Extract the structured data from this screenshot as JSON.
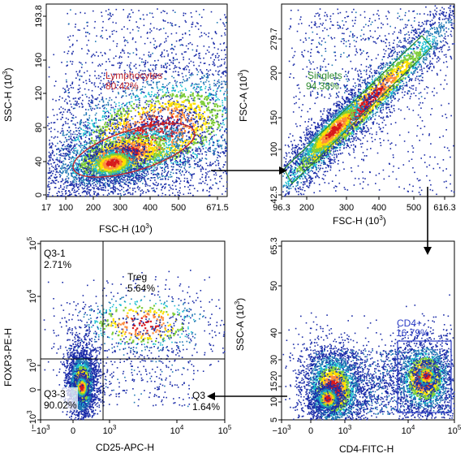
{
  "chart_data": [
    {
      "type": "scatter",
      "panel": "top-left",
      "xlabel": "FSC-H",
      "xlabel_unit": "(10",
      "xlabel_exp": "3",
      "ylabel": "SSC-H",
      "ylabel_unit": "(10",
      "ylabel_exp": "3",
      "x_ticks": [
        "17",
        "100",
        "200",
        "300",
        "400",
        "500",
        "671.5"
      ],
      "y_ticks": [
        "0",
        "40",
        "80",
        "120",
        "160",
        "193.8"
      ],
      "xlim": [
        17,
        671.5
      ],
      "ylim": [
        0,
        193.8
      ],
      "gate": {
        "name": "Lymphocytes",
        "percent": "80.42%",
        "shape": "ellipse",
        "color": "#c0282d",
        "center": [
          360,
          38
        ],
        "semi_axes": [
          170,
          20
        ],
        "angle_deg": 17
      },
      "density_populations": [
        {
          "label": "main cluster",
          "center": [
            265,
            33
          ],
          "spread": [
            95,
            16
          ]
        }
      ]
    },
    {
      "type": "scatter",
      "panel": "top-right",
      "xlabel": "FSC-H",
      "xlabel_unit": "(10",
      "xlabel_exp": "3",
      "ylabel": "FSC-A",
      "ylabel_unit": "(10",
      "ylabel_exp": "3",
      "x_ticks": [
        "96.3",
        "200",
        "300",
        "400",
        "500",
        "616.3"
      ],
      "y_ticks": [
        "42.5",
        "100",
        "150",
        "200",
        "279.7"
      ],
      "xlim": [
        96.3,
        616.3
      ],
      "ylim": [
        42.5,
        279.7
      ],
      "gate": {
        "name": "Singlets",
        "percent": "94.38%",
        "shape": "diagonal-polygon",
        "color": "#2e8b2e",
        "from": [
          110,
          60
        ],
        "to": [
          540,
          262
        ]
      },
      "density_populations": [
        {
          "label": "singlet diagonal",
          "center": [
            250,
            125
          ],
          "spread": [
            60,
            30
          ]
        }
      ]
    },
    {
      "type": "scatter",
      "panel": "bottom-right",
      "xlabel": "CD4-FITC-H",
      "ylabel": "SSC-A",
      "ylabel_unit": "(10",
      "ylabel_exp": "3",
      "x_ticks": [
        {
          "base": "−10",
          "exp": "3"
        },
        {
          "base": "0",
          "exp": ""
        },
        {
          "base": "10",
          "exp": "3"
        },
        {
          "base": "10",
          "exp": "4"
        },
        {
          "base": "10",
          "exp": "5"
        }
      ],
      "y_ticks": [
        "5",
        "10",
        "15",
        "20",
        "30",
        "40",
        "50",
        "65.3"
      ],
      "ylim": [
        5,
        65.3
      ],
      "gate": {
        "name": "CD4+",
        "percent": "16.79%",
        "shape": "rectangle",
        "color": "#2b3cc4"
      },
      "density_populations": [
        {
          "label": "CD4 negative",
          "x": "≈500",
          "y": 11
        },
        {
          "label": "CD4 positive",
          "x": "≈2×10^4",
          "y": 15
        }
      ]
    },
    {
      "type": "scatter",
      "panel": "bottom-left",
      "xlabel": "CD25-APC-H",
      "ylabel": "FOXP3-PE-H",
      "x_ticks": [
        {
          "base": "−10",
          "exp": "3"
        },
        {
          "base": "0",
          "exp": ""
        },
        {
          "base": "10",
          "exp": "3"
        },
        {
          "base": "10",
          "exp": "4"
        },
        {
          "base": "10",
          "exp": "5"
        }
      ],
      "y_ticks": [
        {
          "base": "−10",
          "exp": "3"
        },
        {
          "base": "0",
          "exp": ""
        },
        {
          "base": "10",
          "exp": "3"
        },
        {
          "base": "10",
          "exp": "4"
        },
        {
          "base": "10",
          "exp": "5"
        }
      ],
      "quadrants": [
        {
          "name": "Q3-1",
          "percent": "2.71%"
        },
        {
          "name": "Treg",
          "percent": "5.64%"
        },
        {
          "name": "Q3-3",
          "percent": "90.02%"
        },
        {
          "name": "Q3",
          "percent": "1.64%"
        }
      ],
      "density_populations": [
        {
          "label": "double negative",
          "x": "≈0",
          "y": "≈0"
        },
        {
          "label": "Treg band",
          "x": "10^3–10^4",
          "y": "≈2×10^3–10^4"
        }
      ]
    }
  ]
}
